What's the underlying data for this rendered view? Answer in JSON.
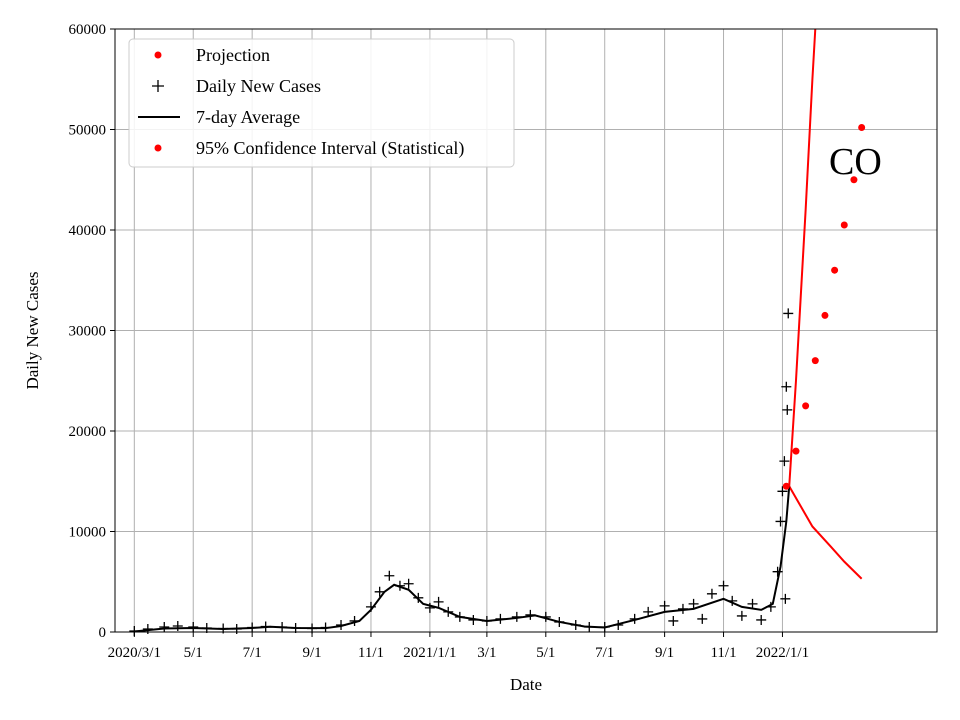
{
  "chart_data": {
    "type": "line",
    "xlabel": "Date",
    "ylabel": "Daily New Cases",
    "annotation": "CO",
    "x_range": [
      "2020-02-10",
      "2022-06-10"
    ],
    "ylim": [
      0,
      60000
    ],
    "grid": true,
    "legend_position": "top-left",
    "x_ticks": [
      {
        "date": "2020-03-01",
        "label": "2020/3/1"
      },
      {
        "date": "2020-05-01",
        "label": "5/1"
      },
      {
        "date": "2020-07-01",
        "label": "7/1"
      },
      {
        "date": "2020-09-01",
        "label": "9/1"
      },
      {
        "date": "2020-11-01",
        "label": "11/1"
      },
      {
        "date": "2021-01-01",
        "label": "2021/1/1"
      },
      {
        "date": "2021-03-01",
        "label": "3/1"
      },
      {
        "date": "2021-05-01",
        "label": "5/1"
      },
      {
        "date": "2021-07-01",
        "label": "7/1"
      },
      {
        "date": "2021-09-01",
        "label": "9/1"
      },
      {
        "date": "2021-11-01",
        "label": "11/1"
      },
      {
        "date": "2022-01-01",
        "label": "2022/1/1"
      }
    ],
    "y_ticks": [
      0,
      10000,
      20000,
      30000,
      40000,
      50000,
      60000
    ],
    "colors": {
      "projection": "#ff0000",
      "daily": "#000000",
      "average": "#000000",
      "interval": "#ff0000"
    },
    "series": [
      {
        "name": "Projection",
        "kind": "dots",
        "points": [
          [
            "2022-01-05",
            14500
          ],
          [
            "2022-01-15",
            18000
          ],
          [
            "2022-01-25",
            22500
          ],
          [
            "2022-02-04",
            27000
          ],
          [
            "2022-02-14",
            31500
          ],
          [
            "2022-02-24",
            36000
          ],
          [
            "2022-03-06",
            40500
          ],
          [
            "2022-03-16",
            45000
          ],
          [
            "2022-03-24",
            50200
          ]
        ]
      },
      {
        "name": "Daily New Cases",
        "kind": "plus",
        "points": [
          [
            "2020-03-01",
            100
          ],
          [
            "2020-03-15",
            300
          ],
          [
            "2020-04-01",
            500
          ],
          [
            "2020-04-15",
            600
          ],
          [
            "2020-05-01",
            500
          ],
          [
            "2020-05-15",
            400
          ],
          [
            "2020-06-01",
            350
          ],
          [
            "2020-06-15",
            300
          ],
          [
            "2020-07-01",
            450
          ],
          [
            "2020-07-15",
            550
          ],
          [
            "2020-08-01",
            500
          ],
          [
            "2020-08-15",
            400
          ],
          [
            "2020-09-01",
            350
          ],
          [
            "2020-09-15",
            450
          ],
          [
            "2020-10-01",
            700
          ],
          [
            "2020-10-15",
            1100
          ],
          [
            "2020-11-01",
            2500
          ],
          [
            "2020-11-10",
            4000
          ],
          [
            "2020-11-20",
            5600
          ],
          [
            "2020-12-01",
            4600
          ],
          [
            "2020-12-10",
            4800
          ],
          [
            "2020-12-20",
            3400
          ],
          [
            "2021-01-01",
            2400
          ],
          [
            "2021-01-10",
            3000
          ],
          [
            "2021-01-20",
            2000
          ],
          [
            "2021-02-01",
            1500
          ],
          [
            "2021-02-15",
            1200
          ],
          [
            "2021-03-01",
            1100
          ],
          [
            "2021-03-15",
            1300
          ],
          [
            "2021-04-01",
            1500
          ],
          [
            "2021-04-15",
            1700
          ],
          [
            "2021-05-01",
            1500
          ],
          [
            "2021-05-15",
            1000
          ],
          [
            "2021-06-01",
            700
          ],
          [
            "2021-06-15",
            500
          ],
          [
            "2021-07-01",
            500
          ],
          [
            "2021-07-15",
            700
          ],
          [
            "2021-08-01",
            1300
          ],
          [
            "2021-08-15",
            2000
          ],
          [
            "2021-09-01",
            2600
          ],
          [
            "2021-09-10",
            1100
          ],
          [
            "2021-09-20",
            2300
          ],
          [
            "2021-10-01",
            2800
          ],
          [
            "2021-10-10",
            1300
          ],
          [
            "2021-10-20",
            3800
          ],
          [
            "2021-11-01",
            4600
          ],
          [
            "2021-11-10",
            3100
          ],
          [
            "2021-11-20",
            1600
          ],
          [
            "2021-12-01",
            2800
          ],
          [
            "2021-12-10",
            1200
          ],
          [
            "2021-12-20",
            2500
          ],
          [
            "2021-12-27",
            6000
          ],
          [
            "2021-12-30",
            11000
          ],
          [
            "2022-01-01",
            14000
          ],
          [
            "2022-01-03",
            17000
          ],
          [
            "2022-01-04",
            3300
          ],
          [
            "2022-01-05",
            24400
          ],
          [
            "2022-01-06",
            22100
          ],
          [
            "2022-01-07",
            31700
          ]
        ]
      },
      {
        "name": "7-day Average",
        "kind": "line",
        "points": [
          [
            "2020-03-01",
            50
          ],
          [
            "2020-04-01",
            350
          ],
          [
            "2020-05-01",
            400
          ],
          [
            "2020-06-01",
            300
          ],
          [
            "2020-07-01",
            400
          ],
          [
            "2020-07-20",
            520
          ],
          [
            "2020-08-15",
            400
          ],
          [
            "2020-09-15",
            380
          ],
          [
            "2020-10-01",
            600
          ],
          [
            "2020-10-20",
            1100
          ],
          [
            "2020-11-01",
            2200
          ],
          [
            "2020-11-15",
            4000
          ],
          [
            "2020-11-25",
            4700
          ],
          [
            "2020-12-10",
            4200
          ],
          [
            "2020-12-25",
            2800
          ],
          [
            "2021-01-10",
            2400
          ],
          [
            "2021-02-01",
            1500
          ],
          [
            "2021-03-01",
            1100
          ],
          [
            "2021-04-01",
            1400
          ],
          [
            "2021-04-20",
            1650
          ],
          [
            "2021-05-15",
            1000
          ],
          [
            "2021-06-10",
            550
          ],
          [
            "2021-07-01",
            450
          ],
          [
            "2021-08-01",
            1200
          ],
          [
            "2021-09-01",
            2000
          ],
          [
            "2021-10-01",
            2300
          ],
          [
            "2021-11-01",
            3300
          ],
          [
            "2021-11-20",
            2500
          ],
          [
            "2021-12-10",
            2200
          ],
          [
            "2021-12-22",
            2800
          ],
          [
            "2021-12-30",
            6500
          ],
          [
            "2022-01-05",
            11000
          ],
          [
            "2022-01-08",
            14500
          ]
        ]
      },
      {
        "name": "95% Confidence Interval (Statistical)",
        "kind": "band",
        "upper": [
          [
            "2022-01-08",
            14500
          ],
          [
            "2022-01-15",
            25000
          ],
          [
            "2022-01-25",
            42000
          ],
          [
            "2022-02-01",
            55000
          ],
          [
            "2022-02-04",
            60000
          ]
        ],
        "lower": [
          [
            "2022-01-08",
            14500
          ],
          [
            "2022-01-20",
            12500
          ],
          [
            "2022-02-01",
            10500
          ],
          [
            "2022-02-20",
            8500
          ],
          [
            "2022-03-06",
            7000
          ],
          [
            "2022-03-24",
            5300
          ]
        ]
      }
    ]
  }
}
